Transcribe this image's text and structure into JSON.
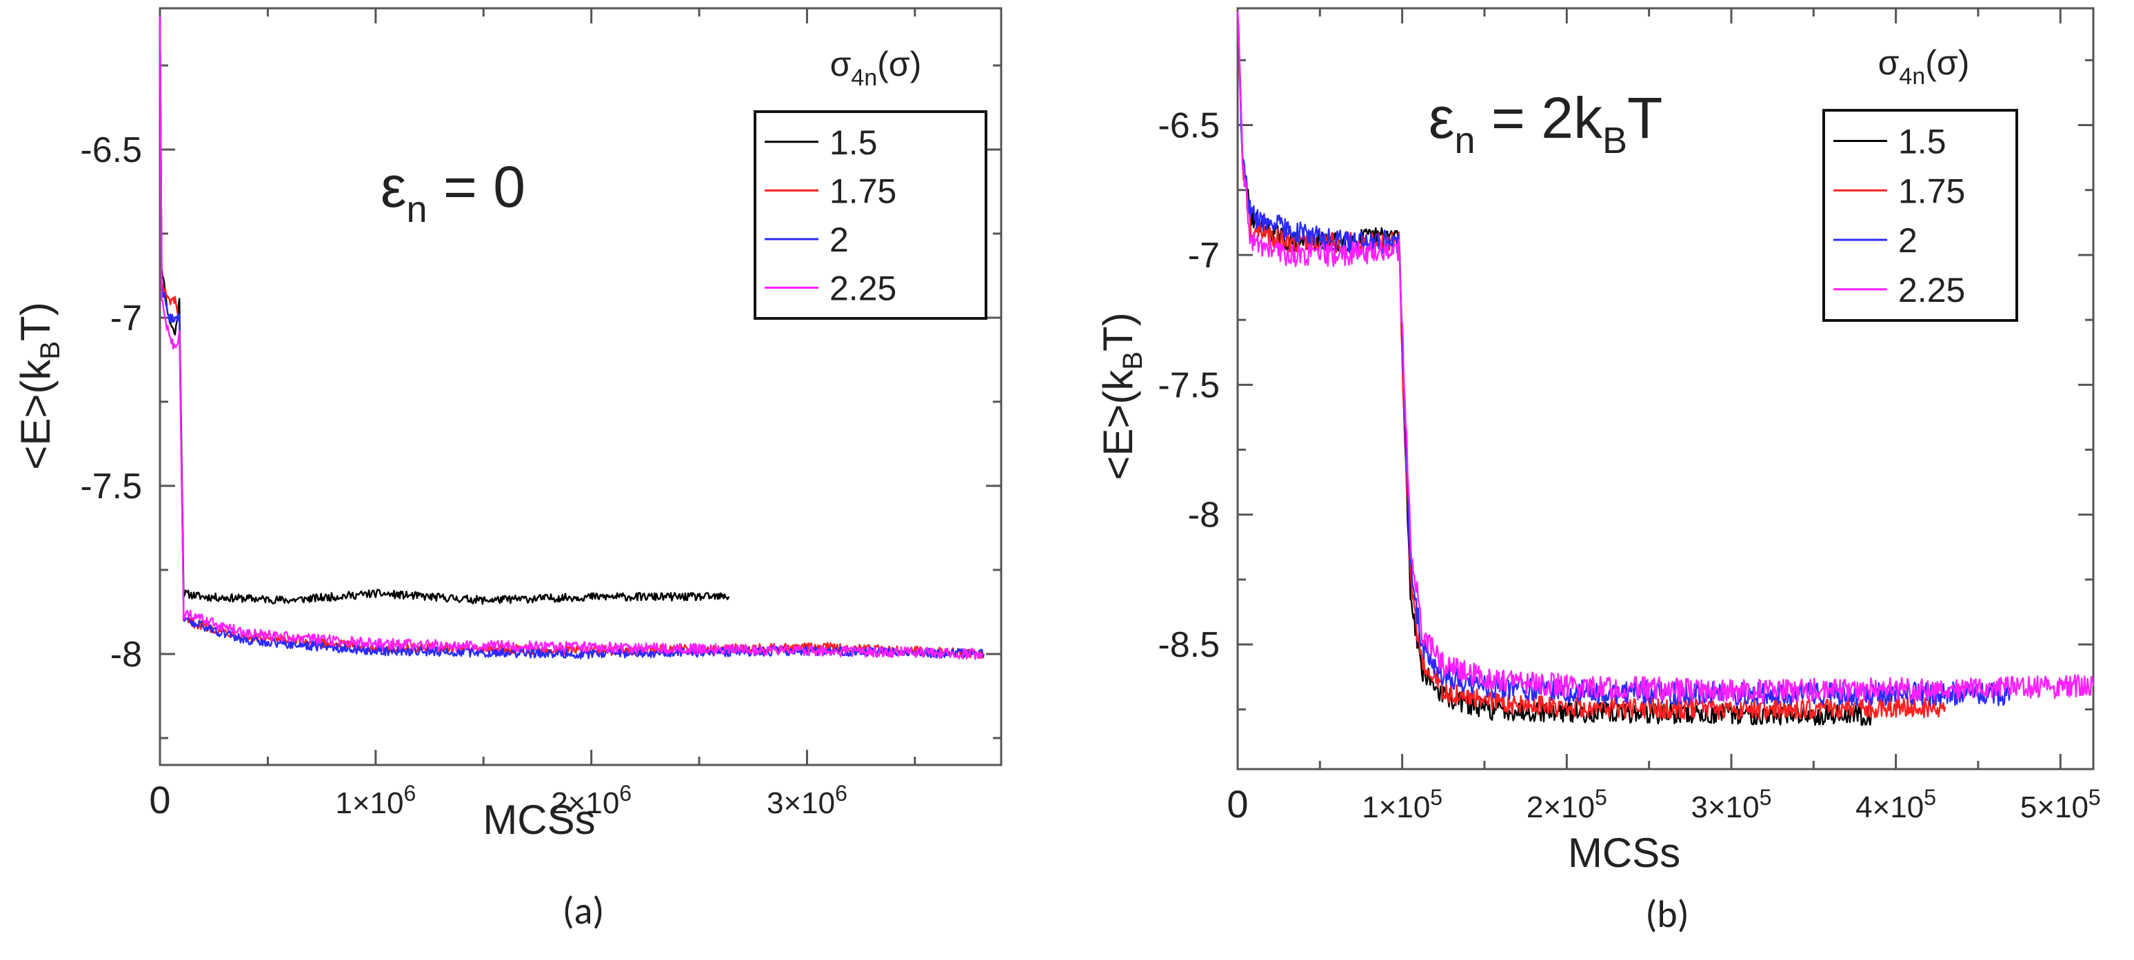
{
  "chart_data": [
    {
      "type": "line",
      "panel": "(a)",
      "annotation": {
        "base": "ε",
        "sub": "n",
        "rest": " = 0"
      },
      "xlabel": "MCSs",
      "ylabel": {
        "base": "<E>(k",
        "sub": "B",
        "rest": "T)"
      },
      "xlim": [
        0,
        3900000
      ],
      "ylim": [
        -8.33,
        -6.08
      ],
      "x_ticks": [
        {
          "value": 0,
          "mant": "0",
          "exp": ""
        },
        {
          "value": 1000000,
          "mant": "1×10",
          "exp": "6"
        },
        {
          "value": 2000000,
          "mant": "2×10",
          "exp": "6"
        },
        {
          "value": 3000000,
          "mant": "3×10",
          "exp": "6"
        }
      ],
      "y_ticks": [
        {
          "value": -6.5,
          "label": "-6.5"
        },
        {
          "value": -7,
          "label": "-7"
        },
        {
          "value": -7.5,
          "label": "-7.5"
        },
        {
          "value": -8,
          "label": "-8"
        }
      ],
      "legend": {
        "title": {
          "base": "σ",
          "sub": "4n",
          "rest": "(σ)"
        },
        "placement": "top-right"
      },
      "series": [
        {
          "name": "1.5",
          "color": "#000000",
          "noise": 0.012,
          "points": [
            [
              0,
              -6.1
            ],
            [
              8000,
              -6.85
            ],
            [
              40000,
              -7.0
            ],
            [
              70000,
              -7.05
            ],
            [
              90000,
              -6.95
            ],
            [
              110000,
              -7.82
            ],
            [
              200000,
              -7.83
            ],
            [
              600000,
              -7.84
            ],
            [
              1000000,
              -7.82
            ],
            [
              1500000,
              -7.84
            ],
            [
              2000000,
              -7.83
            ],
            [
              2640000,
              -7.83
            ]
          ]
        },
        {
          "name": "1.75",
          "color": "#ff2020",
          "noise": 0.014,
          "points": [
            [
              0,
              -6.1
            ],
            [
              8000,
              -6.9
            ],
            [
              40000,
              -6.95
            ],
            [
              70000,
              -6.95
            ],
            [
              90000,
              -7.0
            ],
            [
              110000,
              -7.9
            ],
            [
              400000,
              -7.95
            ],
            [
              1000000,
              -7.98
            ],
            [
              2000000,
              -7.99
            ],
            [
              2500000,
              -7.985
            ],
            [
              3100000,
              -7.98
            ],
            [
              3820000,
              -8.0
            ]
          ]
        },
        {
          "name": "2",
          "color": "#2a2aff",
          "noise": 0.014,
          "points": [
            [
              0,
              -6.1
            ],
            [
              8000,
              -6.9
            ],
            [
              40000,
              -7.0
            ],
            [
              70000,
              -7.0
            ],
            [
              90000,
              -7.0
            ],
            [
              110000,
              -7.9
            ],
            [
              400000,
              -7.96
            ],
            [
              1000000,
              -7.99
            ],
            [
              2000000,
              -8.0
            ],
            [
              3000000,
              -7.99
            ],
            [
              3820000,
              -8.0
            ]
          ]
        },
        {
          "name": "2.25",
          "color": "#ff20ff",
          "noise": 0.016,
          "points": [
            [
              0,
              -6.1
            ],
            [
              8000,
              -6.95
            ],
            [
              40000,
              -7.05
            ],
            [
              70000,
              -7.1
            ],
            [
              90000,
              -7.05
            ],
            [
              110000,
              -7.88
            ],
            [
              400000,
              -7.94
            ],
            [
              1000000,
              -7.97
            ],
            [
              2000000,
              -7.98
            ],
            [
              3000000,
              -7.99
            ],
            [
              3820000,
              -8.0
            ]
          ]
        }
      ]
    },
    {
      "type": "line",
      "panel": "(b)",
      "annotation": {
        "base": "ε",
        "sub": "n",
        "rest": " = 2k",
        "sub2": "B",
        "rest2": "T"
      },
      "xlabel": "MCSs",
      "ylabel": {
        "base": "<E>(k",
        "sub": "B",
        "rest": "T)"
      },
      "xlim": [
        0,
        520000
      ],
      "ylim": [
        -8.98,
        -6.05
      ],
      "x_ticks": [
        {
          "value": 0,
          "mant": "0",
          "exp": ""
        },
        {
          "value": 100000,
          "mant": "1×10",
          "exp": "5"
        },
        {
          "value": 200000,
          "mant": "2×10",
          "exp": "5"
        },
        {
          "value": 300000,
          "mant": "3×10",
          "exp": "5"
        },
        {
          "value": 400000,
          "mant": "4×10",
          "exp": "5"
        },
        {
          "value": 500000,
          "mant": "5×10",
          "exp": "5"
        }
      ],
      "y_ticks": [
        {
          "value": -6.5,
          "label": "-6.5"
        },
        {
          "value": -7,
          "label": "-7"
        },
        {
          "value": -7.5,
          "label": "-7.5"
        },
        {
          "value": -8,
          "label": "-8"
        },
        {
          "value": -8.5,
          "label": "-8.5"
        }
      ],
      "legend": {
        "title": {
          "base": "σ",
          "sub": "4n",
          "rest": "(σ)"
        },
        "placement": "top-right"
      },
      "series": [
        {
          "name": "1.5",
          "color": "#000000",
          "noise": 0.04,
          "points": [
            [
              0,
              -6.05
            ],
            [
              3000,
              -6.65
            ],
            [
              8000,
              -6.85
            ],
            [
              30000,
              -6.95
            ],
            [
              60000,
              -6.95
            ],
            [
              98000,
              -6.92
            ],
            [
              101000,
              -7.6
            ],
            [
              105000,
              -8.3
            ],
            [
              112000,
              -8.6
            ],
            [
              125000,
              -8.7
            ],
            [
              150000,
              -8.75
            ],
            [
              200000,
              -8.76
            ],
            [
              300000,
              -8.77
            ],
            [
              385000,
              -8.77
            ]
          ]
        },
        {
          "name": "1.75",
          "color": "#ff2020",
          "noise": 0.04,
          "points": [
            [
              0,
              -6.05
            ],
            [
              3000,
              -6.65
            ],
            [
              8000,
              -6.9
            ],
            [
              30000,
              -6.95
            ],
            [
              60000,
              -6.95
            ],
            [
              98000,
              -6.95
            ],
            [
              101000,
              -7.6
            ],
            [
              105000,
              -8.25
            ],
            [
              112000,
              -8.58
            ],
            [
              125000,
              -8.68
            ],
            [
              150000,
              -8.72
            ],
            [
              200000,
              -8.74
            ],
            [
              300000,
              -8.75
            ],
            [
              430000,
              -8.74
            ]
          ]
        },
        {
          "name": "2",
          "color": "#2a2aff",
          "noise": 0.045,
          "points": [
            [
              0,
              -6.05
            ],
            [
              3000,
              -6.65
            ],
            [
              8000,
              -6.85
            ],
            [
              30000,
              -6.9
            ],
            [
              60000,
              -6.95
            ],
            [
              98000,
              -6.95
            ],
            [
              101000,
              -7.5
            ],
            [
              105000,
              -8.2
            ],
            [
              112000,
              -8.5
            ],
            [
              125000,
              -8.62
            ],
            [
              150000,
              -8.66
            ],
            [
              200000,
              -8.68
            ],
            [
              300000,
              -8.69
            ],
            [
              470000,
              -8.69
            ]
          ]
        },
        {
          "name": "2.25",
          "color": "#ff20ff",
          "noise": 0.045,
          "points": [
            [
              0,
              -6.05
            ],
            [
              3000,
              -6.65
            ],
            [
              8000,
              -6.95
            ],
            [
              30000,
              -7.0
            ],
            [
              60000,
              -7.0
            ],
            [
              98000,
              -6.98
            ],
            [
              101000,
              -7.45
            ],
            [
              105000,
              -8.1
            ],
            [
              112000,
              -8.45
            ],
            [
              125000,
              -8.58
            ],
            [
              150000,
              -8.63
            ],
            [
              200000,
              -8.66
            ],
            [
              300000,
              -8.68
            ],
            [
              520000,
              -8.66
            ]
          ]
        }
      ]
    }
  ]
}
